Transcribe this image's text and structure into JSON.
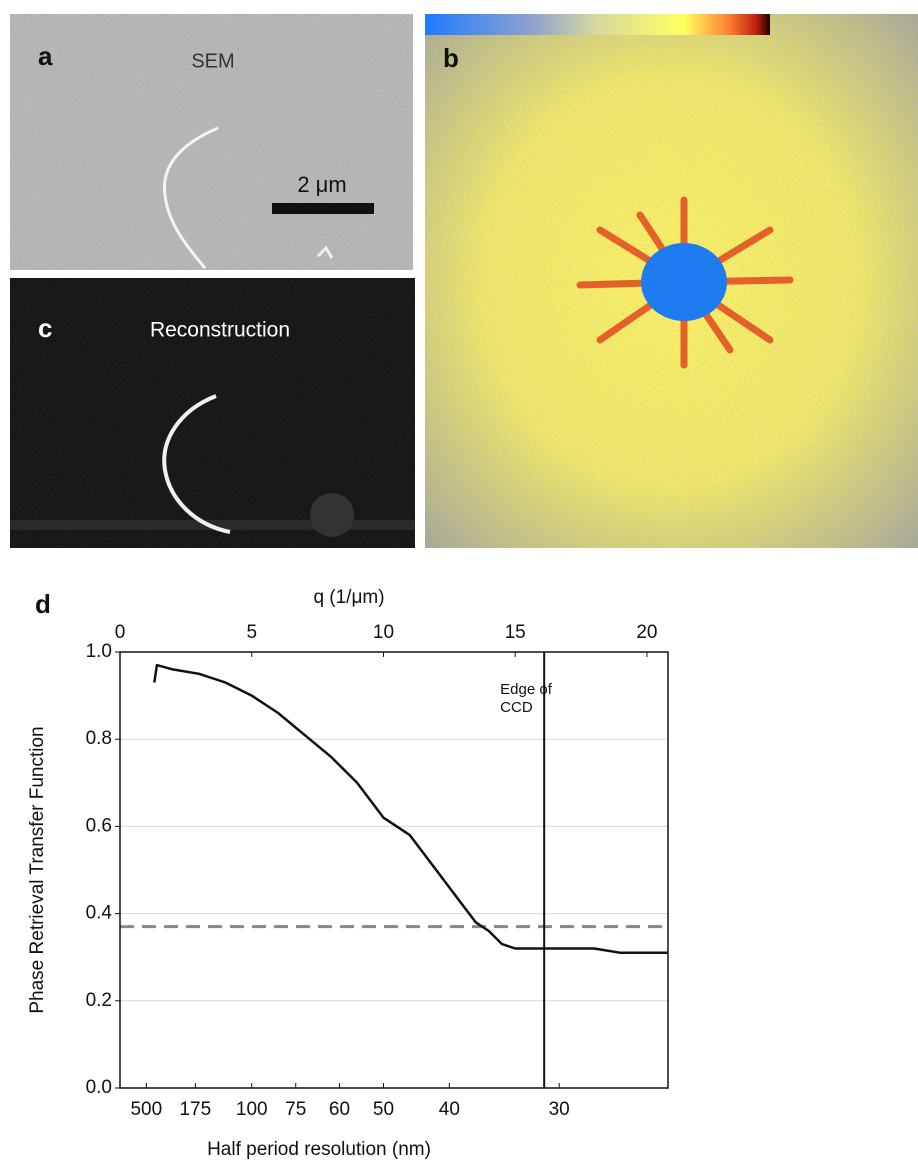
{
  "panels": [
    {
      "letter": "a",
      "title": "SEM",
      "scale_bar": "2 μm"
    },
    {
      "letter": "b"
    },
    {
      "letter": "c",
      "title": "Reconstruction"
    }
  ],
  "chart_data": {
    "type": "line",
    "panel_letter": "d",
    "xlabel": "q (1/μm)",
    "x2label": "Half period resolution (nm)",
    "ylabel": "Phase Retrieval Transfer Function",
    "x": [
      1.3,
      1.4,
      2,
      3,
      4,
      5,
      6,
      7,
      8,
      9,
      10,
      11,
      12,
      13,
      13.5,
      14,
      14.5,
      15,
      16,
      17,
      18,
      19,
      20,
      20.8
    ],
    "values": [
      0.93,
      0.97,
      0.96,
      0.95,
      0.93,
      0.9,
      0.86,
      0.81,
      0.76,
      0.7,
      0.62,
      0.58,
      0.5,
      0.42,
      0.38,
      0.36,
      0.33,
      0.32,
      0.32,
      0.32,
      0.32,
      0.31,
      0.31,
      0.31
    ],
    "color": "#111111",
    "xlim": [
      0,
      20.8
    ],
    "xticks": [
      0,
      5,
      10,
      15,
      20
    ],
    "x2ticks": [
      {
        "value": 1,
        "label": "500"
      },
      {
        "value": 2.86,
        "label": "175"
      },
      {
        "value": 5,
        "label": "100"
      },
      {
        "value": 6.67,
        "label": "75"
      },
      {
        "value": 8.33,
        "label": "60"
      },
      {
        "value": 10,
        "label": "50"
      },
      {
        "value": 12.5,
        "label": "40"
      },
      {
        "value": 16.67,
        "label": "30"
      }
    ],
    "ylim": [
      0,
      1
    ],
    "yticks": [
      {
        "value": 0,
        "label": "0.0"
      },
      0.2,
      0.4,
      0.6,
      0.8,
      {
        "value": 1,
        "label": "1.0"
      }
    ],
    "grid": true,
    "hlines": [
      {
        "value": 0.37,
        "color": "#888888"
      }
    ],
    "vlines": [
      {
        "value": 16.1,
        "label": [
          "Edge of",
          "CCD"
        ]
      }
    ]
  }
}
